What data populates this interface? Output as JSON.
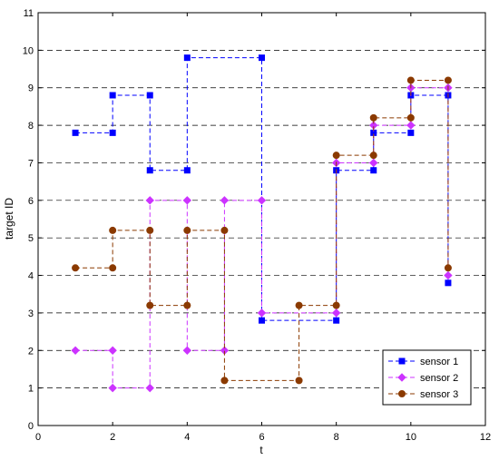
{
  "chart_data": {
    "type": "line",
    "title": "",
    "xlabel": "t",
    "ylabel": "target ID",
    "xlim": [
      0,
      12
    ],
    "ylim": [
      0,
      11
    ],
    "xticks": [
      0,
      2,
      4,
      6,
      8,
      10,
      12
    ],
    "yticks": [
      0,
      1,
      2,
      3,
      4,
      5,
      6,
      7,
      8,
      9,
      10,
      11
    ],
    "grid": "horizontal dashed",
    "legend_position": "bottom-right",
    "step_style": "dashed staircase, marker at both ends of each interval",
    "series": [
      {
        "name": "sensor 1",
        "color": "#0000ff",
        "marker": "square",
        "segments": [
          {
            "t": [
              1,
              2
            ],
            "id": 7.8
          },
          {
            "t": [
              2,
              3
            ],
            "id": 8.8
          },
          {
            "t": [
              3,
              4
            ],
            "id": 6.8
          },
          {
            "t": [
              4,
              6
            ],
            "id": 9.8
          },
          {
            "t": [
              6,
              8
            ],
            "id": 2.8
          },
          {
            "t": [
              8,
              9
            ],
            "id": 6.8
          },
          {
            "t": [
              9,
              10
            ],
            "id": 7.8
          },
          {
            "t": [
              10,
              11
            ],
            "id": 8.8
          },
          {
            "t": [
              11,
              11
            ],
            "id": 3.8
          }
        ]
      },
      {
        "name": "sensor 2",
        "color": "#cc33ff",
        "marker": "diamond",
        "segments": [
          {
            "t": [
              1,
              2
            ],
            "id": 2
          },
          {
            "t": [
              2,
              3
            ],
            "id": 1
          },
          {
            "t": [
              3,
              4
            ],
            "id": 6
          },
          {
            "t": [
              4,
              5
            ],
            "id": 2
          },
          {
            "t": [
              5,
              6
            ],
            "id": 6
          },
          {
            "t": [
              6,
              8
            ],
            "id": 3
          },
          {
            "t": [
              8,
              9
            ],
            "id": 7
          },
          {
            "t": [
              9,
              10
            ],
            "id": 8
          },
          {
            "t": [
              10,
              11
            ],
            "id": 9
          },
          {
            "t": [
              11,
              11
            ],
            "id": 4
          }
        ]
      },
      {
        "name": "sensor 3",
        "color": "#8b3a00",
        "marker": "circle",
        "segments": [
          {
            "t": [
              1,
              2
            ],
            "id": 4.2
          },
          {
            "t": [
              2,
              3
            ],
            "id": 5.2
          },
          {
            "t": [
              3,
              4
            ],
            "id": 3.2
          },
          {
            "t": [
              4,
              5
            ],
            "id": 5.2
          },
          {
            "t": [
              5,
              7
            ],
            "id": 1.2
          },
          {
            "t": [
              7,
              8
            ],
            "id": 3.2
          },
          {
            "t": [
              8,
              9
            ],
            "id": 7.2
          },
          {
            "t": [
              9,
              10
            ],
            "id": 8.2
          },
          {
            "t": [
              10,
              11
            ],
            "id": 9.2
          },
          {
            "t": [
              11,
              11
            ],
            "id": 4.2
          }
        ]
      }
    ]
  }
}
